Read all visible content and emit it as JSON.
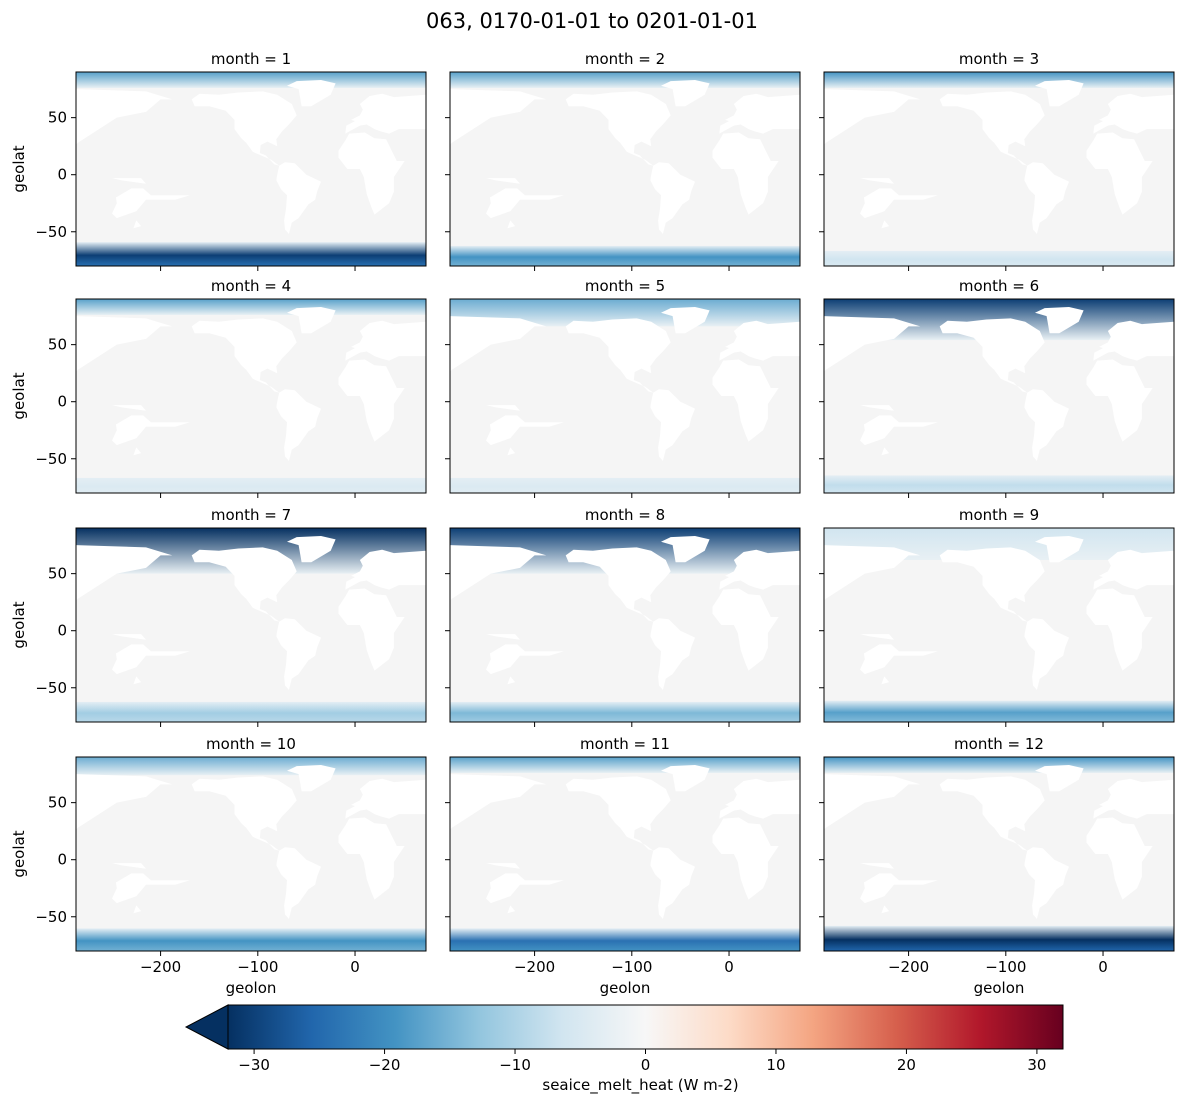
{
  "figure": {
    "suptitle": "063, 0170-01-01 to 0201-01-01"
  },
  "chart_data": {
    "type": "heatmap",
    "panels": [
      {
        "title": "month = 1",
        "month": 1,
        "arctic_intensity": 0.55,
        "arctic_cover": 0.35,
        "antarctic_intensity": 0.95,
        "antarctic_cover": 0.95
      },
      {
        "title": "month = 2",
        "month": 2,
        "arctic_intensity": 0.55,
        "arctic_cover": 0.35,
        "antarctic_intensity": 0.6,
        "antarctic_cover": 0.8
      },
      {
        "title": "month = 3",
        "month": 3,
        "arctic_intensity": 0.6,
        "arctic_cover": 0.35,
        "antarctic_intensity": 0.2,
        "antarctic_cover": 0.6
      },
      {
        "title": "month = 4",
        "month": 4,
        "arctic_intensity": 0.55,
        "arctic_cover": 0.35,
        "antarctic_intensity": 0.15,
        "antarctic_cover": 0.6
      },
      {
        "title": "month = 5",
        "month": 5,
        "arctic_intensity": 0.5,
        "arctic_cover": 0.6,
        "antarctic_intensity": 0.15,
        "antarctic_cover": 0.6
      },
      {
        "title": "month = 6",
        "month": 6,
        "arctic_intensity": 0.95,
        "arctic_cover": 0.9,
        "antarctic_intensity": 0.25,
        "antarctic_cover": 0.7
      },
      {
        "title": "month = 7",
        "month": 7,
        "arctic_intensity": 1.0,
        "arctic_cover": 1.0,
        "antarctic_intensity": 0.35,
        "antarctic_cover": 0.8
      },
      {
        "title": "month = 8",
        "month": 8,
        "arctic_intensity": 0.95,
        "arctic_cover": 1.0,
        "antarctic_intensity": 0.45,
        "antarctic_cover": 0.8
      },
      {
        "title": "month = 9",
        "month": 9,
        "arctic_intensity": 0.2,
        "arctic_cover": 0.7,
        "antarctic_intensity": 0.55,
        "antarctic_cover": 0.85
      },
      {
        "title": "month = 10",
        "month": 10,
        "arctic_intensity": 0.5,
        "arctic_cover": 0.4,
        "antarctic_intensity": 0.6,
        "antarctic_cover": 0.9
      },
      {
        "title": "month = 11",
        "month": 11,
        "arctic_intensity": 0.55,
        "arctic_cover": 0.35,
        "antarctic_intensity": 0.75,
        "antarctic_cover": 0.9
      },
      {
        "title": "month = 12",
        "month": 12,
        "arctic_intensity": 0.6,
        "arctic_cover": 0.35,
        "antarctic_intensity": 1.0,
        "antarctic_cover": 1.0
      }
    ],
    "xlabel": "geolon",
    "ylabel": "geolat",
    "xlim": [
      -287,
      73
    ],
    "ylim": [
      -80,
      90
    ],
    "x_ticks": [
      -200,
      -100,
      0
    ],
    "x_tick_labels": [
      "−200",
      "−100",
      "0"
    ],
    "y_ticks": [
      -50,
      0,
      50
    ],
    "y_tick_labels": [
      "−50",
      "0",
      "50"
    ],
    "colorbar": {
      "label": "seaice_melt_heat (W m-2)",
      "vmin": -32,
      "vmax": 32,
      "ticks": [
        -30,
        -20,
        -10,
        0,
        10,
        20,
        30
      ],
      "tick_labels": [
        "−30",
        "−20",
        "−10",
        "0",
        "10",
        "20",
        "30"
      ],
      "extend": "min",
      "colormap": "RdBu_r",
      "stops": [
        "#053061",
        "#2166ac",
        "#4393c3",
        "#92c5de",
        "#d1e5f0",
        "#f7f7f7",
        "#fddbc7",
        "#f4a582",
        "#d6604d",
        "#b2182b",
        "#67001f"
      ]
    },
    "background_color": "#f5f5f5",
    "land_color": "#ffffff"
  }
}
